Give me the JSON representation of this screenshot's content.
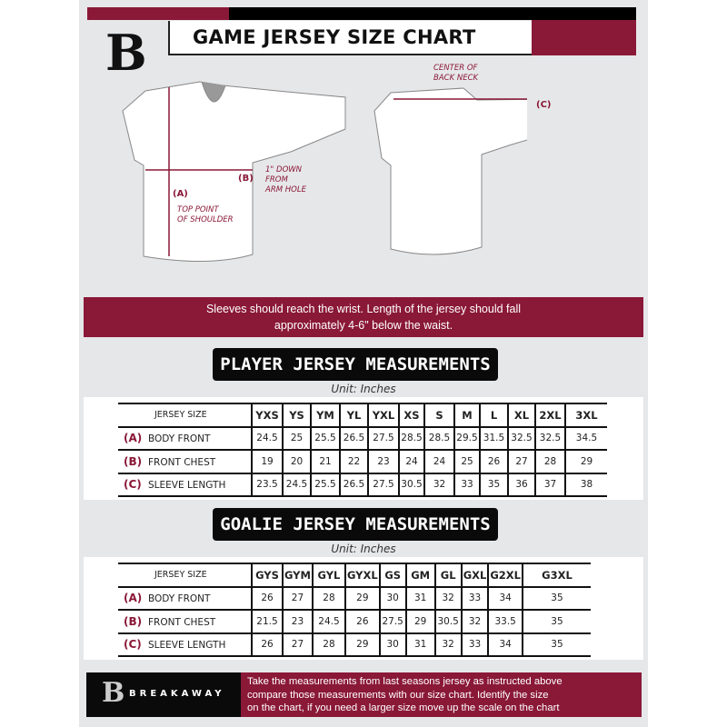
{
  "header": {
    "title": "GAME JERSEY SIZE CHART",
    "logo_text": "B"
  },
  "diagram": {
    "label_a": "(A)",
    "label_a_desc": [
      "TOP POINT",
      "OF SHOULDER"
    ],
    "label_b": "(B)",
    "label_b_desc": [
      "1\" DOWN",
      "FROM",
      "ARM HOLE"
    ],
    "label_c": "(C)",
    "label_c_desc": [
      "CENTER OF",
      "BACK NECK"
    ]
  },
  "banner": {
    "lines": [
      "Sleeves should reach the wrist. Length of the jersey should fall",
      "approximately 4-6\" below the waist."
    ]
  },
  "colors": {
    "maroon": "#8a1837",
    "black": "#0a0a0a",
    "background": "#e6e7e9"
  },
  "player": {
    "title": "PLAYER JERSEY MEASUREMENTS",
    "unit": "Unit: Inches",
    "size_header": "JERSEY SIZE",
    "sizes": [
      "YXS",
      "YS",
      "YM",
      "YL",
      "YXL",
      "XS",
      "S",
      "M",
      "L",
      "XL",
      "2XL",
      "3XL"
    ],
    "rows": [
      {
        "key": "(A)",
        "label": "BODY FRONT",
        "values": [
          "24.5",
          "25",
          "25.5",
          "26.5",
          "27.5",
          "28.5",
          "28.5",
          "29.5",
          "31.5",
          "32.5",
          "32.5",
          "34.5"
        ]
      },
      {
        "key": "(B)",
        "label": "FRONT CHEST",
        "values": [
          "19",
          "20",
          "21",
          "22",
          "23",
          "24",
          "24",
          "25",
          "26",
          "27",
          "28",
          "29"
        ]
      },
      {
        "key": "(C)",
        "label": "SLEEVE LENGTH",
        "values": [
          "23.5",
          "24.5",
          "25.5",
          "26.5",
          "27.5",
          "30.5",
          "32",
          "33",
          "35",
          "36",
          "37",
          "38"
        ]
      }
    ]
  },
  "goalie": {
    "title": "GOALIE JERSEY MEASUREMENTS",
    "unit": "Unit: Inches",
    "size_header": "JERSEY SIZE",
    "sizes": [
      "GYS",
      "GYM",
      "GYL",
      "GYXL",
      "GS",
      "GM",
      "GL",
      "GXL",
      "G2XL",
      "G3XL"
    ],
    "rows": [
      {
        "key": "(A)",
        "label": "BODY FRONT",
        "values": [
          "26",
          "27",
          "28",
          "29",
          "30",
          "31",
          "32",
          "33",
          "34",
          "35"
        ]
      },
      {
        "key": "(B)",
        "label": "FRONT CHEST",
        "values": [
          "21.5",
          "23",
          "24.5",
          "26",
          "27.5",
          "29",
          "30.5",
          "32",
          "33.5",
          "35"
        ]
      },
      {
        "key": "(C)",
        "label": "SLEEVE LENGTH",
        "values": [
          "26",
          "27",
          "28",
          "29",
          "30",
          "31",
          "32",
          "33",
          "34",
          "35"
        ]
      }
    ]
  },
  "footer": {
    "brand": "BREAKAWAY",
    "logo_text": "B",
    "lines": [
      "Take the measurements from last seasons jersey as instructed above",
      "compare those measurements  with our size chart. Identify the size",
      "on the chart, if you need a larger size move up the scale on the chart"
    ]
  }
}
